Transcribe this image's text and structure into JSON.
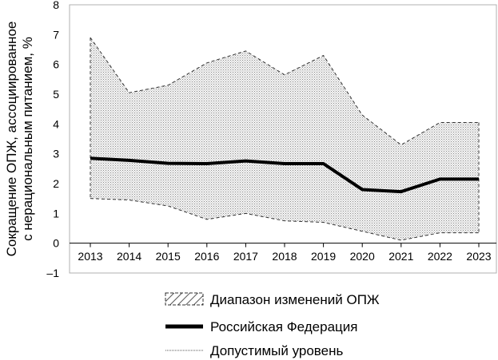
{
  "chart_data": {
    "type": "line",
    "title": "",
    "ylabel_lines": [
      "Сокращение ОПЖ, ассоциированное",
      "с нерациональным питанием, %"
    ],
    "xlabel": "",
    "x": [
      "2013",
      "2014",
      "2015",
      "2016",
      "2017",
      "2018",
      "2019",
      "2020",
      "2021",
      "2022",
      "2023"
    ],
    "ylim": [
      -1,
      8
    ],
    "yticks": [
      "8",
      "7",
      "6",
      "5",
      "4",
      "3",
      "2",
      "1",
      "0",
      "–1"
    ],
    "ytick_values": [
      8,
      7,
      6,
      5,
      4,
      3,
      2,
      1,
      0,
      -1
    ],
    "grid": false,
    "legend_position": "bottom",
    "range": {
      "name": "Диапазон изменений ОПЖ",
      "upper": [
        6.9,
        5.05,
        5.3,
        6.05,
        6.45,
        5.65,
        6.3,
        4.3,
        3.3,
        4.05,
        4.05
      ],
      "lower": [
        1.5,
        1.45,
        1.25,
        0.8,
        1.0,
        0.75,
        0.7,
        0.4,
        0.1,
        0.35,
        0.35
      ]
    },
    "series": [
      {
        "name": "Российская Федерация",
        "values": [
          2.85,
          2.78,
          2.68,
          2.67,
          2.76,
          2.67,
          2.67,
          1.8,
          1.73,
          2.15,
          2.15
        ]
      }
    ],
    "reference_name": "Допустимый уровень",
    "colors": {
      "line": "#000000",
      "fill_bg": "#f4f4f4",
      "axis": "#000000"
    }
  }
}
